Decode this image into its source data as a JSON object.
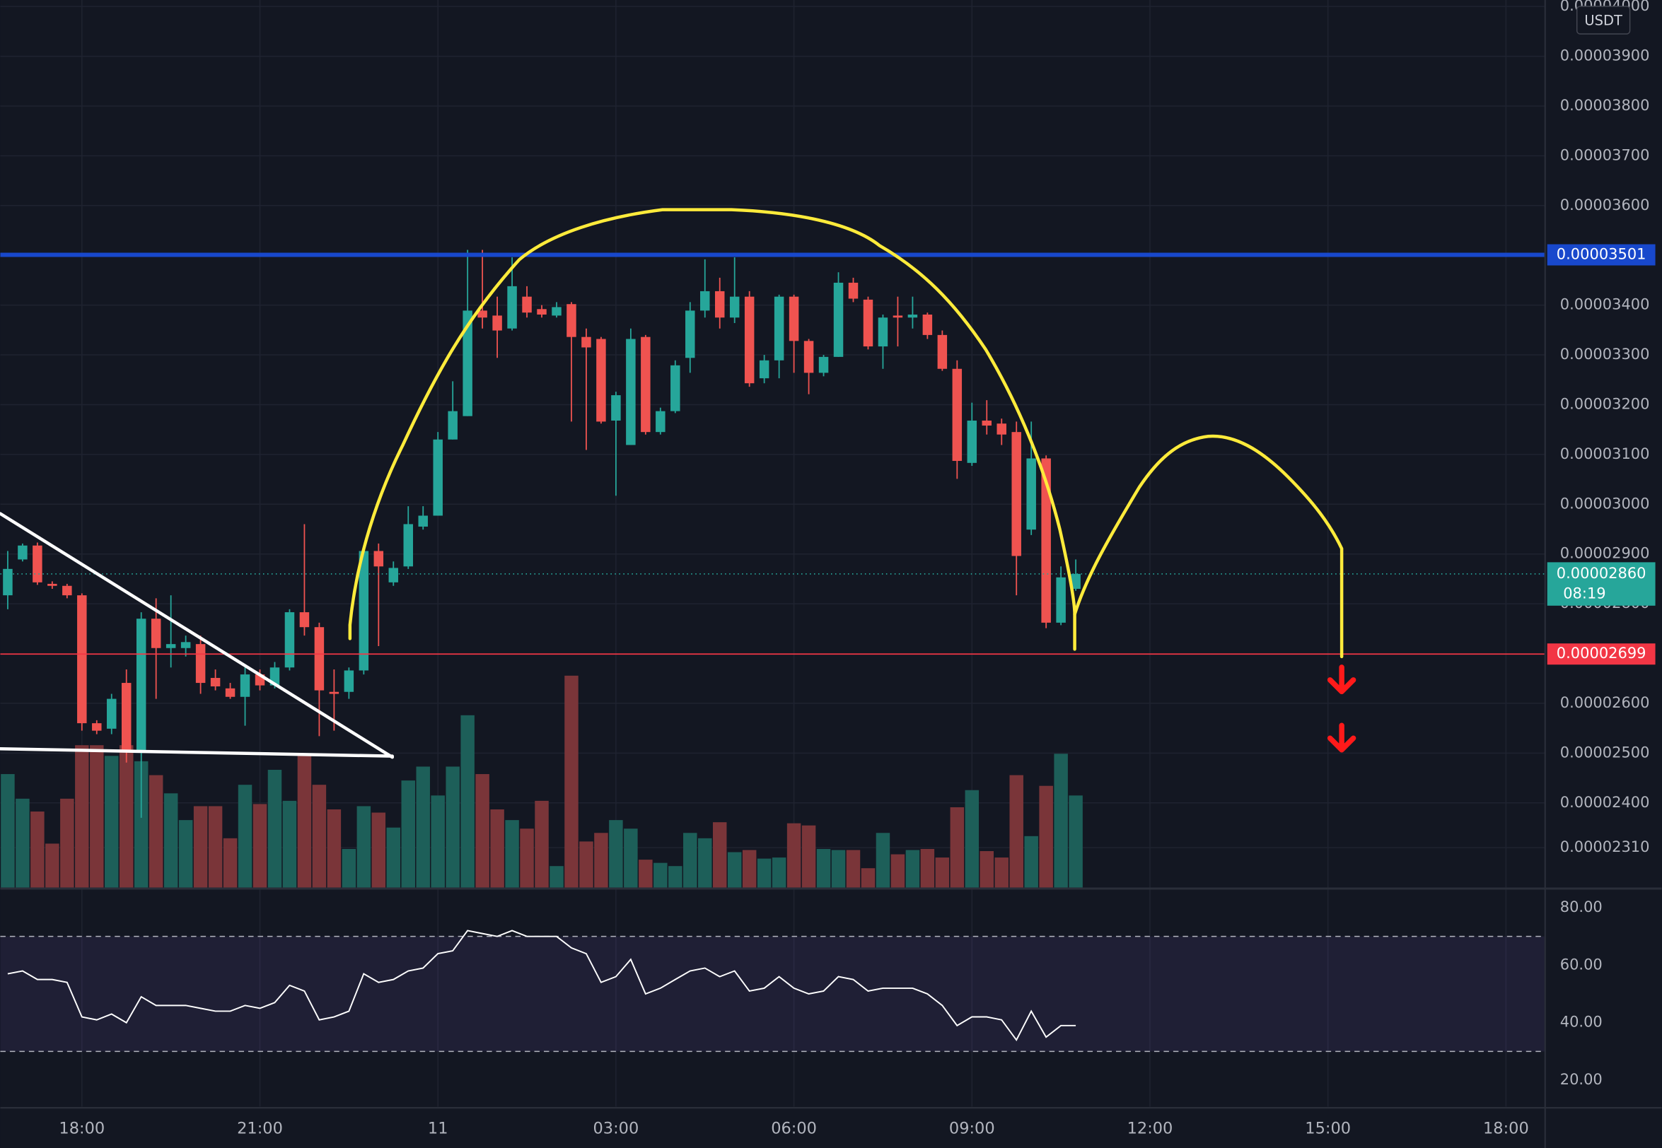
{
  "chart_data": [
    {
      "type": "candlestick",
      "currency": "USDT",
      "xlim": [
        -0.5,
        103.64
      ],
      "xticks": [
        {
          "value": 5,
          "label": "18:00"
        },
        {
          "value": 17,
          "label": "21:00"
        },
        {
          "value": 29,
          "label": "11"
        },
        {
          "value": 41,
          "label": "03:00"
        },
        {
          "value": 53,
          "label": "06:00"
        },
        {
          "value": 65,
          "label": "09:00"
        },
        {
          "value": 77,
          "label": "12:00"
        },
        {
          "value": 89,
          "label": "15:00"
        },
        {
          "value": 101,
          "label": "18:00"
        }
      ],
      "ylim": [
        2.23e-05,
        4.013e-05
      ],
      "yticks": [
        {
          "value": 4e-05,
          "label": "0.00004000"
        },
        {
          "value": 3.9e-05,
          "label": "0.00003900"
        },
        {
          "value": 3.8e-05,
          "label": "0.00003800"
        },
        {
          "value": 3.7e-05,
          "label": "0.00003700"
        },
        {
          "value": 3.6e-05,
          "label": "0.00003600"
        },
        {
          "value": 3.4e-05,
          "label": "0.00003400"
        },
        {
          "value": 3.3e-05,
          "label": "0.00003300"
        },
        {
          "value": 3.2e-05,
          "label": "0.00003200"
        },
        {
          "value": 3.1e-05,
          "label": "0.00003100"
        },
        {
          "value": 3e-05,
          "label": "0.00003000"
        },
        {
          "value": 2.9e-05,
          "label": "0.00002900"
        },
        {
          "value": 2.8e-05,
          "label": "0.00002800"
        },
        {
          "value": 2.6e-05,
          "label": "0.00002600"
        },
        {
          "value": 2.5e-05,
          "label": "0.00002500"
        },
        {
          "value": 2.4e-05,
          "label": "0.00002400"
        },
        {
          "value": 2.31e-05,
          "label": "0.00002310"
        }
      ],
      "grid": true,
      "colors": {
        "up": "#26a69a",
        "down": "#ef5350",
        "volume_up": "#1d5f59",
        "volume_down": "#7a3539"
      },
      "open": [
        2.817e-05,
        2.889e-05,
        2.917e-05,
        2.84e-05,
        2.836e-05,
        2.817e-05,
        2.56e-05,
        2.549e-05,
        2.641e-05,
        2.506e-05,
        2.77e-05,
        2.711e-05,
        2.711e-05,
        2.719e-05,
        2.651e-05,
        2.63e-05,
        2.613e-05,
        2.658e-05,
        2.636e-05,
        2.672e-05,
        2.783e-05,
        2.753e-05,
        2.623e-05,
        2.623e-05,
        2.666e-05,
        2.906e-05,
        2.843e-05,
        2.875e-05,
        2.955e-05,
        2.977e-05,
        3.13e-05,
        3.177e-05,
        3.389e-05,
        3.379e-05,
        3.353e-05,
        3.417e-05,
        3.392e-05,
        3.379e-05,
        3.402e-05,
        3.336e-05,
        3.332e-05,
        3.168e-05,
        3.119e-05,
        3.336e-05,
        3.145e-05,
        3.187e-05,
        3.294e-05,
        3.389e-05,
        3.428e-05,
        3.375e-05,
        3.417e-05,
        3.253e-05,
        3.289e-05,
        3.417e-05,
        3.328e-05,
        3.264e-05,
        3.296e-05,
        3.445e-05,
        3.411e-05,
        3.317e-05,
        3.379e-05,
        3.375e-05,
        3.381e-05,
        3.34e-05,
        3.272e-05,
        3.083e-05,
        3.168e-05,
        3.162e-05,
        3.145e-05,
        2.949e-05,
        3.092e-05,
        2.762e-05,
        2.83e-05
      ],
      "high": [
        2.906e-05,
        2.921e-05,
        2.923e-05,
        2.845e-05,
        2.84e-05,
        2.821e-05,
        2.566e-05,
        2.619e-05,
        2.668e-05,
        2.783e-05,
        2.811e-05,
        2.817e-05,
        2.736e-05,
        2.736e-05,
        2.668e-05,
        2.641e-05,
        2.672e-05,
        2.668e-05,
        2.683e-05,
        2.789e-05,
        2.96e-05,
        2.762e-05,
        2.668e-05,
        2.672e-05,
        2.917e-05,
        2.921e-05,
        2.885e-05,
        2.996e-05,
        2.996e-05,
        3.145e-05,
        3.247e-05,
        3.511e-05,
        3.511e-05,
        3.417e-05,
        3.496e-05,
        3.438e-05,
        3.4e-05,
        3.406e-05,
        3.406e-05,
        3.353e-05,
        3.336e-05,
        3.226e-05,
        3.353e-05,
        3.34e-05,
        3.194e-05,
        3.289e-05,
        3.406e-05,
        3.492e-05,
        3.455e-05,
        3.496e-05,
        3.428e-05,
        3.3e-05,
        3.421e-05,
        3.421e-05,
        3.332e-05,
        3.3e-05,
        3.466e-05,
        3.455e-05,
        3.417e-05,
        3.381e-05,
        3.417e-05,
        3.417e-05,
        3.385e-05,
        3.349e-05,
        3.289e-05,
        3.204e-05,
        3.209e-05,
        3.172e-05,
        3.166e-05,
        3.166e-05,
        3.098e-05,
        2.875e-05,
        2.889e-05
      ],
      "low": [
        2.789e-05,
        2.885e-05,
        2.838e-05,
        2.83e-05,
        2.811e-05,
        2.545e-05,
        2.538e-05,
        2.538e-05,
        2.481e-05,
        2.37e-05,
        2.609e-05,
        2.672e-05,
        2.694e-05,
        2.619e-05,
        2.626e-05,
        2.609e-05,
        2.555e-05,
        2.626e-05,
        2.63e-05,
        2.666e-05,
        2.736e-05,
        2.534e-05,
        2.545e-05,
        2.609e-05,
        2.658e-05,
        2.715e-05,
        2.836e-05,
        2.87e-05,
        2.949e-05,
        2.977e-05,
        3.13e-05,
        3.177e-05,
        3.353e-05,
        3.294e-05,
        3.349e-05,
        3.375e-05,
        3.375e-05,
        3.375e-05,
        3.166e-05,
        3.109e-05,
        3.162e-05,
        3.017e-05,
        3.119e-05,
        3.14e-05,
        3.14e-05,
        3.183e-05,
        3.264e-05,
        3.375e-05,
        3.353e-05,
        3.364e-05,
        3.236e-05,
        3.243e-05,
        3.253e-05,
        3.264e-05,
        3.221e-05,
        3.257e-05,
        3.296e-05,
        3.406e-05,
        3.311e-05,
        3.272e-05,
        3.317e-05,
        3.353e-05,
        3.332e-05,
        3.268e-05,
        3.051e-05,
        3.077e-05,
        3.14e-05,
        3.119e-05,
        2.817e-05,
        2.938e-05,
        2.751e-05,
        2.757e-05,
        2.826e-05
      ],
      "close": [
        2.87e-05,
        2.917e-05,
        2.843e-05,
        2.836e-05,
        2.817e-05,
        2.56e-05,
        2.545e-05,
        2.609e-05,
        2.506e-05,
        2.77e-05,
        2.711e-05,
        2.719e-05,
        2.723e-05,
        2.641e-05,
        2.634e-05,
        2.613e-05,
        2.658e-05,
        2.636e-05,
        2.672e-05,
        2.783e-05,
        2.753e-05,
        2.626e-05,
        2.619e-05,
        2.666e-05,
        2.906e-05,
        2.875e-05,
        2.872e-05,
        2.96e-05,
        2.977e-05,
        3.13e-05,
        3.187e-05,
        3.389e-05,
        3.375e-05,
        3.349e-05,
        3.438e-05,
        3.385e-05,
        3.381e-05,
        3.396e-05,
        3.336e-05,
        3.315e-05,
        3.166e-05,
        3.219e-05,
        3.332e-05,
        3.145e-05,
        3.187e-05,
        3.279e-05,
        3.389e-05,
        3.428e-05,
        3.375e-05,
        3.417e-05,
        3.243e-05,
        3.289e-05,
        3.417e-05,
        3.328e-05,
        3.264e-05,
        3.296e-05,
        3.445e-05,
        3.413e-05,
        3.317e-05,
        3.375e-05,
        3.375e-05,
        3.381e-05,
        3.34e-05,
        3.272e-05,
        3.087e-05,
        3.168e-05,
        3.158e-05,
        3.14e-05,
        2.896e-05,
        3.092e-05,
        2.762e-05,
        2.853e-05,
        2.86e-05
      ],
      "volume": [
        106,
        83,
        71,
        41,
        83,
        133,
        133,
        123,
        133,
        118,
        105,
        88,
        63,
        76,
        76,
        46,
        96,
        78,
        110,
        81,
        123,
        96,
        73,
        36,
        76,
        70,
        56,
        100,
        113,
        86,
        113,
        161,
        106,
        73,
        63,
        55,
        81,
        20,
        198,
        43,
        51,
        63,
        55,
        26,
        23,
        20,
        51,
        46,
        61,
        33,
        35,
        27,
        28,
        60,
        58,
        36,
        35,
        35,
        18,
        51,
        31,
        35,
        36,
        28,
        75,
        91,
        34,
        28,
        105,
        48,
        95,
        125,
        86
      ],
      "levels": [
        {
          "value": 3.501e-05,
          "label": "0.00003501",
          "color": "#1848cc"
        },
        {
          "value": 2.699e-05,
          "label": "0.00002699",
          "color": "#f23645"
        }
      ],
      "last": {
        "value": 2.86e-05,
        "label": "0.00002860",
        "countdown": "08:19",
        "color": "#26a69a"
      }
    },
    {
      "type": "line",
      "color": "#ffffff",
      "ylim": [
        10.8,
        86.26
      ],
      "yticks": [
        {
          "value": 80,
          "label": "80.00"
        },
        {
          "value": 60,
          "label": "60.00"
        },
        {
          "value": 40,
          "label": "40.00"
        },
        {
          "value": 20,
          "label": "20.00"
        }
      ],
      "bands": [
        70,
        30
      ],
      "values": [
        57,
        58,
        55,
        55,
        54,
        42,
        41,
        43,
        40,
        49,
        46,
        46,
        46,
        45,
        44,
        44,
        46,
        45,
        47,
        53,
        51,
        41,
        42,
        44,
        57,
        54,
        55,
        58,
        59,
        64,
        65,
        72,
        71,
        70,
        72,
        70,
        70,
        70,
        66,
        64,
        54,
        56,
        62,
        50,
        52,
        55,
        58,
        59,
        56,
        58,
        51,
        52,
        56,
        52,
        50,
        51,
        56,
        55,
        51,
        52,
        52,
        52,
        50,
        46,
        39,
        42,
        42,
        41,
        34,
        44,
        35,
        39,
        39
      ]
    }
  ]
}
